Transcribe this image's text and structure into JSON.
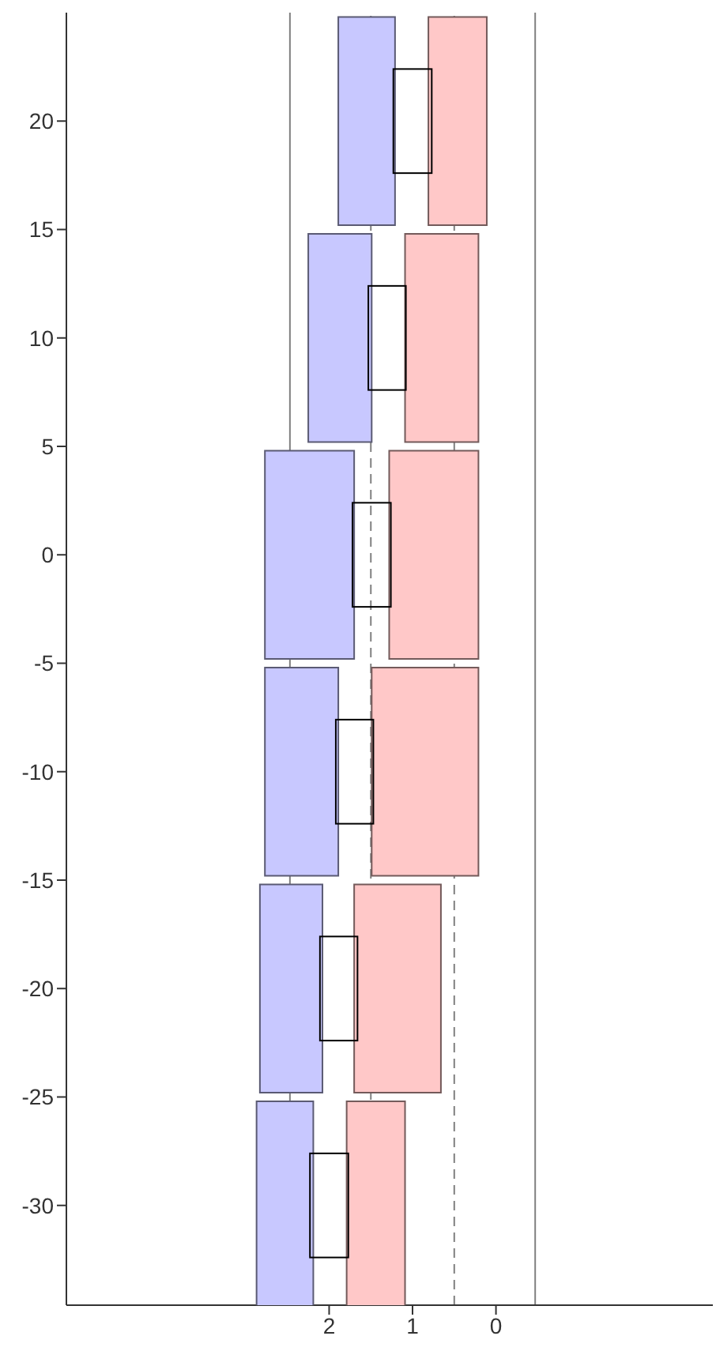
{
  "chart_data": {
    "type": "bar",
    "orientation": "horizontal",
    "x": [
      20,
      10,
      0,
      -10,
      -20,
      -30
    ],
    "series": [
      {
        "color": "#c8c8ff",
        "base": [
          1.21,
          1.49,
          1.7,
          1.89,
          2.08,
          2.19
        ],
        "values": [
          0.68,
          0.76,
          1.07,
          0.88,
          0.75,
          0.68
        ]
      },
      {
        "color": "#ffc8c8",
        "base": [
          0.11,
          0.21,
          0.21,
          0.21,
          0.66,
          1.09
        ],
        "values": [
          0.7,
          0.88,
          1.07,
          1.28,
          1.04,
          0.7
        ]
      },
      {
        "color": "#000000",
        "base": [
          0.77,
          1.08,
          1.26,
          1.47,
          1.66,
          1.77
        ],
        "values": [
          0.46,
          0.45,
          0.46,
          0.45,
          0.45,
          0.46
        ]
      }
    ],
    "xlim": [
      5.15,
      -2.6
    ],
    "xticks": [
      2,
      1,
      0
    ],
    "ylim": [
      -34.6,
      25
    ],
    "yticks": [
      -30,
      -25,
      -20,
      -15,
      -10,
      -5,
      0,
      5,
      10,
      15,
      20
    ],
    "ref_lines": [
      {
        "axis": "x",
        "value": 2.47,
        "color": "#808080",
        "line_style": "solid"
      },
      {
        "axis": "x",
        "value": -0.47,
        "color": "#808080",
        "line_style": "solid"
      },
      {
        "axis": "x",
        "value": 1.5,
        "color": "#808080",
        "line_style": "dashed"
      },
      {
        "axis": "x",
        "value": 0.5,
        "color": "#808080",
        "line_style": "dashed"
      }
    ]
  }
}
